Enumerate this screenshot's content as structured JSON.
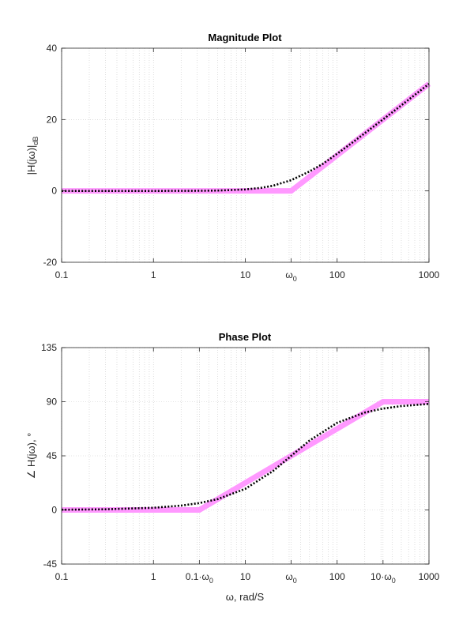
{
  "colors": {
    "asymptote": "#ff99ff",
    "exact": "#000000",
    "grid": "#c8c8c8",
    "axis": "#262626"
  },
  "chart_data": [
    {
      "type": "line",
      "title": "Magnitude Plot",
      "xscale": "log",
      "xlim": [
        0.1,
        1000
      ],
      "ylim": [
        -20,
        40
      ],
      "grid": true,
      "x_ticks": [
        {
          "value": 0.1,
          "label": "0.1"
        },
        {
          "value": 1,
          "label": "1"
        },
        {
          "value": 10,
          "label": "10"
        },
        {
          "value": 31.6,
          "label": "ω",
          "sub": "0"
        },
        {
          "value": 100,
          "label": "100"
        },
        {
          "value": 1000,
          "label": "1000"
        }
      ],
      "y_ticks": [
        {
          "value": -20,
          "label": "-20"
        },
        {
          "value": 0,
          "label": "0"
        },
        {
          "value": 20,
          "label": "20"
        },
        {
          "value": 40,
          "label": "40"
        }
      ],
      "ylabel": {
        "main": "|H(jω)|",
        "sub": "dB"
      },
      "series": [
        {
          "style": "asymptote",
          "x": [
            0.1,
            31.6,
            1000
          ],
          "y": [
            0,
            0,
            30
          ]
        },
        {
          "style": "exact",
          "x": [
            0.1,
            1,
            3,
            5,
            10,
            15,
            20,
            31.6,
            50,
            70,
            100,
            150,
            200,
            316,
            500,
            700,
            1000
          ],
          "y": [
            0,
            0,
            0.04,
            0.1,
            0.41,
            0.88,
            1.45,
            3.01,
            5.46,
            7.6,
            10.41,
            13.74,
            16.17,
            20.04,
            23.98,
            26.9,
            30.0
          ]
        }
      ]
    },
    {
      "type": "line",
      "title": "Phase Plot",
      "xscale": "log",
      "xlim": [
        0.1,
        1000
      ],
      "ylim": [
        -45,
        135
      ],
      "grid": true,
      "x_ticks": [
        {
          "value": 0.1,
          "label": "0.1"
        },
        {
          "value": 1,
          "label": "1"
        },
        {
          "value": 3.16,
          "label": "0.1·ω",
          "sub": "0"
        },
        {
          "value": 10,
          "label": "10"
        },
        {
          "value": 31.6,
          "label": "ω",
          "sub": "0"
        },
        {
          "value": 100,
          "label": "100"
        },
        {
          "value": 316,
          "label": "10·ω",
          "sub": "0"
        },
        {
          "value": 1000,
          "label": "1000"
        }
      ],
      "y_ticks": [
        {
          "value": -45,
          "label": "-45"
        },
        {
          "value": 0,
          "label": "0"
        },
        {
          "value": 45,
          "label": "45"
        },
        {
          "value": 90,
          "label": "90"
        },
        {
          "value": 135,
          "label": "135"
        }
      ],
      "ylabel": {
        "main": "∠ H(jω), °"
      },
      "xlabel": "ω, rad/S",
      "series": [
        {
          "style": "asymptote",
          "x": [
            0.1,
            3.16,
            316,
            1000
          ],
          "y": [
            0,
            0,
            90,
            90
          ]
        },
        {
          "style": "exact",
          "x": [
            0.1,
            0.3,
            1,
            2,
            3.16,
            5,
            10,
            20,
            31.6,
            50,
            100,
            200,
            316,
            500,
            1000
          ],
          "y": [
            0.18,
            0.54,
            1.81,
            3.62,
            5.71,
            8.99,
            17.55,
            32.3,
            45.0,
            57.7,
            72.45,
            81.0,
            84.29,
            86.38,
            88.19
          ]
        }
      ]
    }
  ]
}
